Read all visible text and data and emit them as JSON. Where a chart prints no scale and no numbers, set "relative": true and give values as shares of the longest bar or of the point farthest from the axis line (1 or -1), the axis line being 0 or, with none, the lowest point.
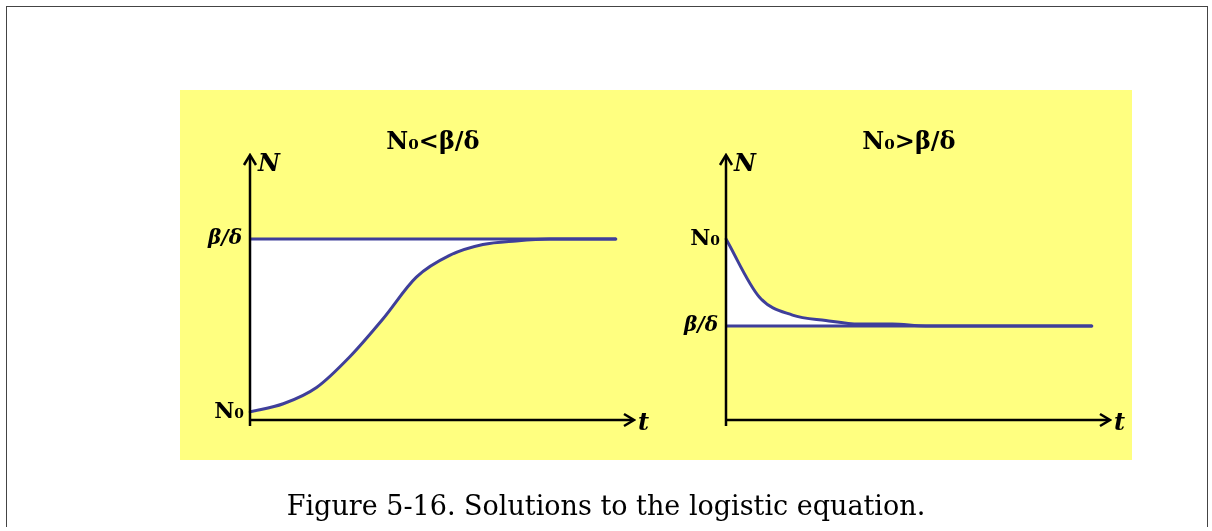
{
  "chart_data": [
    {
      "type": "line",
      "title": "N₀<β/δ",
      "xlabel": "t",
      "ylabel": "N",
      "relative": true,
      "tick_labels": false,
      "grid": false,
      "legend": false,
      "marker": "none",
      "line_style": "solid",
      "categories": [
        null,
        null,
        null,
        null,
        null,
        null,
        null,
        null,
        null,
        null,
        null,
        null
      ],
      "series": [
        {
          "color": "#3f3f9a",
          "values": [
            0.045,
            0.09,
            0.18,
            0.35,
            0.56,
            0.79,
            0.91,
            0.97,
            0.99,
            1,
            1,
            1
          ]
        }
      ],
      "ref_lines": [
        {
          "axis": "y",
          "value": 1,
          "label": "β/δ",
          "color": "#3f3f9a"
        }
      ],
      "annotations": [
        "N₀"
      ]
    },
    {
      "type": "line",
      "title": "N₀>β/δ",
      "xlabel": "t",
      "ylabel": "N",
      "relative": true,
      "tick_labels": false,
      "grid": false,
      "legend": false,
      "marker": "none",
      "line_style": "solid",
      "categories": [
        null,
        null,
        null,
        null,
        null,
        null,
        null,
        null,
        null,
        null,
        null,
        null
      ],
      "series": [
        {
          "color": "#3f3f9a",
          "values": [
            1,
            0.68,
            0.58,
            0.55,
            0.53,
            0.53,
            0.52,
            0.52,
            0.52,
            0.52,
            0.52,
            0.52
          ]
        }
      ],
      "ref_lines": [
        {
          "axis": "y",
          "value": 0.52,
          "label": "β/δ",
          "color": "#3f3f9a"
        }
      ],
      "annotations": [
        "N₀",
        "Figure 5-16. Solutions to the logistic equation."
      ]
    }
  ]
}
